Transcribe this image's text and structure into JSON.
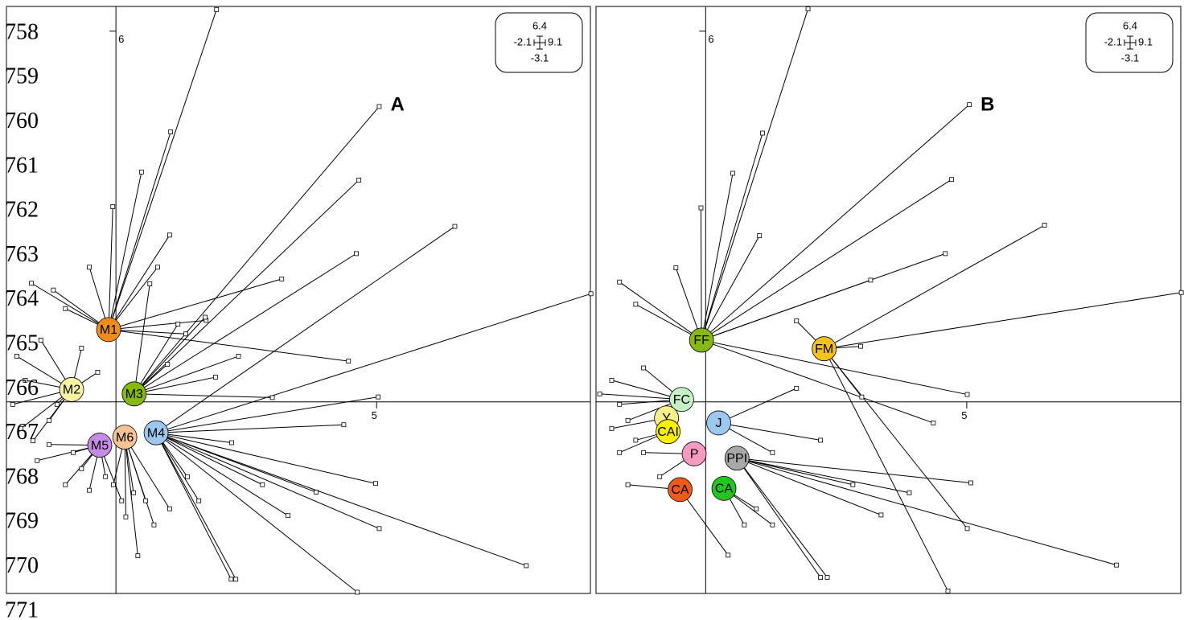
{
  "line_numbers": [
    758,
    759,
    760,
    761,
    762,
    763,
    764,
    765,
    766,
    767,
    768,
    769,
    770,
    771
  ],
  "chart_data": [
    {
      "type": "star",
      "annotation": "A",
      "xlim": [
        -2.1,
        9.1
      ],
      "ylim": [
        -3.1,
        6.4
      ],
      "xticks": [
        5
      ],
      "yticks": [
        6
      ],
      "series": [
        {
          "name": "M1",
          "color": "#f28c1c",
          "centroid": [
            -0.14,
            1.17
          ],
          "x": [
            1.93,
            1.05,
            0.49,
            -0.06,
            4.46,
            3.18,
            -0.51,
            -1.2,
            -1.62,
            -0.97,
            1.73,
            1.34,
            0.8,
            1.03
          ],
          "y": [
            6.35,
            4.37,
            3.72,
            3.16,
            0.66,
            1.99,
            2.18,
            1.81,
            1.92,
            1.51,
            1.32,
            1.1,
            2.18,
            2.7
          ]
        },
        {
          "name": "M2",
          "color": "#f7f3a0",
          "centroid": [
            -0.85,
            0.2
          ],
          "x": [
            -1.9,
            -1.74,
            -1.98,
            -1.44,
            -0.35,
            -1.28,
            -1.82,
            -0.66,
            -1.59,
            -1.13
          ],
          "y": [
            0.74,
            0.35,
            -0.04,
            1.0,
            0.48,
            -0.3,
            -0.43,
            0.87,
            -0.63,
            -0.04
          ]
        },
        {
          "name": "M3",
          "color": "#86b817",
          "centroid": [
            0.35,
            0.13
          ],
          "x": [
            5.05,
            4.66,
            4.61,
            1.91,
            2.35,
            3.0,
            1.19,
            0.65,
            1.71,
            0.99
          ],
          "y": [
            4.78,
            3.59,
            2.4,
            0.4,
            0.74,
            0.07,
            1.26,
            1.91,
            1.37,
            0.61
          ]
        },
        {
          "name": "M4",
          "color": "#9cc8f0",
          "centroid": [
            0.77,
            -0.5
          ],
          "x": [
            9.11,
            6.5,
            7.87,
            4.63,
            5.03,
            5.05,
            4.98,
            3.84,
            3.3,
            2.3,
            2.21,
            2.81,
            2.22,
            4.37,
            1.59,
            1.37
          ],
          "y": [
            1.75,
            2.84,
            -2.65,
            -3.08,
            0.08,
            -2.05,
            -1.32,
            -1.46,
            -1.84,
            -2.87,
            -2.87,
            -1.34,
            -0.66,
            -0.37,
            -1.6,
            -1.21
          ]
        },
        {
          "name": "M5",
          "color": "#c58be6",
          "centroid": [
            -0.31,
            -0.7
          ],
          "x": [
            -0.97,
            -0.51,
            -0.82,
            -1.28,
            0.11,
            -0.2,
            -0.66,
            -1.51
          ],
          "y": [
            -1.34,
            -1.43,
            -0.82,
            -0.69,
            -1.6,
            -1.21,
            -1.08,
            -0.95
          ]
        },
        {
          "name": "M6",
          "color": "#f5c394",
          "centroid": [
            0.17,
            -0.57
          ],
          "x": [
            0.42,
            0.19,
            0.73,
            1.03,
            -0.05,
            0.57,
            0.34
          ],
          "y": [
            -2.49,
            -1.86,
            -1.99,
            -1.73,
            -1.34,
            -1.6,
            -1.47
          ]
        }
      ]
    },
    {
      "type": "star",
      "annotation": "B",
      "xlim": [
        -2.1,
        9.1
      ],
      "ylim": [
        -3.1,
        6.4
      ],
      "xticks": [
        5
      ],
      "yticks": [
        6
      ],
      "series": [
        {
          "name": "FF",
          "color": "#86b817",
          "centroid": [
            -0.08,
            1.0
          ],
          "x": [
            1.96,
            1.09,
            1.03,
            0.52,
            5.05,
            4.71,
            4.59,
            3.16,
            -1.65,
            -1.34,
            -0.57,
            -0.09,
            5.01,
            4.36
          ],
          "y": [
            6.36,
            4.35,
            2.69,
            3.7,
            4.81,
            3.6,
            2.4,
            1.97,
            1.94,
            1.58,
            2.17,
            3.14,
            0.12,
            -0.34
          ]
        },
        {
          "name": "FM",
          "color": "#f5c21b",
          "centroid": [
            2.27,
            0.86
          ],
          "x": [
            9.11,
            6.49,
            5.01,
            4.64,
            2.97,
            1.74,
            2.99
          ],
          "y": [
            1.77,
            2.86,
            -2.05,
            -3.06,
            0.9,
            1.31,
            0.08
          ]
        },
        {
          "name": "FC",
          "color": "#c5efc5",
          "centroid": [
            -0.46,
            0.04
          ],
          "x": [
            -2.03,
            -1.8,
            -1.65,
            -1.19,
            -1.49
          ],
          "y": [
            0.13,
            0.35,
            -0.04,
            0.55,
            -0.3
          ]
        },
        {
          "name": "Y",
          "color": "#f7f08a",
          "centroid": [
            -0.75,
            -0.26
          ],
          "x": [
            -1.8
          ],
          "y": [
            -0.43
          ]
        },
        {
          "name": "CAI",
          "color": "#f7f000",
          "centroid": [
            -0.72,
            -0.48
          ],
          "x": [
            -1.34,
            -1.65
          ],
          "y": [
            -0.62,
            -0.82
          ]
        },
        {
          "name": "J",
          "color": "#9cc8f0",
          "centroid": [
            0.25,
            -0.34
          ],
          "x": [
            2.2,
            1.74,
            1.28
          ],
          "y": [
            -0.62,
            0.22,
            -0.82
          ]
        },
        {
          "name": "P",
          "color": "#f59ac0",
          "centroid": [
            -0.22,
            -0.84
          ],
          "x": [
            -1.19,
            -0.88
          ],
          "y": [
            -0.82,
            -1.21
          ]
        },
        {
          "name": "PPI",
          "color": "#a8a8a8",
          "centroid": [
            0.6,
            -0.91
          ],
          "x": [
            7.87,
            5.08,
            3.9,
            3.36,
            2.2,
            2.33,
            2.82
          ],
          "y": [
            -2.64,
            -1.31,
            -1.47,
            -1.83,
            -2.84,
            -2.84,
            -1.34
          ]
        },
        {
          "name": "CA",
          "color": "#f05a1a",
          "centroid": [
            -0.49,
            -1.42
          ],
          "x": [
            0.43,
            -1.49
          ],
          "y": [
            -2.48,
            -1.34
          ]
        },
        {
          "name": "CA",
          "color": "#1ec81e",
          "centroid": [
            0.35,
            -1.4
          ],
          "x": [
            1.28,
            0.74,
            0.97
          ],
          "y": [
            -1.99,
            -1.99,
            -1.73
          ]
        }
      ]
    }
  ]
}
